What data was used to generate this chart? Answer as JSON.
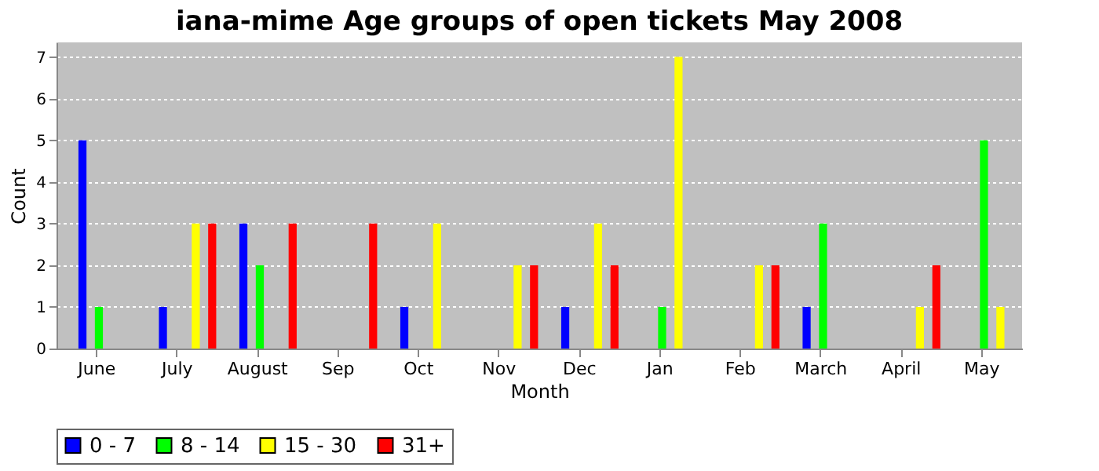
{
  "chart_data": {
    "type": "bar",
    "title": "iana-mime Age groups of open tickets May 2008",
    "xlabel": "Month",
    "ylabel": "Count",
    "categories": [
      "June",
      "July",
      "August",
      "Sep",
      "Oct",
      "Nov",
      "Dec",
      "Jan",
      "Feb",
      "March",
      "April",
      "May"
    ],
    "series": [
      {
        "name": "0 - 7",
        "color": "#0000ff",
        "values": [
          5,
          1,
          3,
          0,
          1,
          0,
          1,
          0,
          0,
          1,
          0,
          0
        ]
      },
      {
        "name": "8 - 14",
        "color": "#00ff00",
        "values": [
          1,
          0,
          2,
          0,
          0,
          0,
          0,
          1,
          0,
          3,
          0,
          5
        ]
      },
      {
        "name": "15 - 30",
        "color": "#ffff00",
        "values": [
          0,
          3,
          0,
          0,
          3,
          2,
          3,
          7,
          2,
          0,
          1,
          1
        ]
      },
      {
        "name": "31+",
        "color": "#ff0000",
        "values": [
          0,
          3,
          3,
          3,
          0,
          2,
          2,
          0,
          2,
          0,
          2,
          0
        ]
      }
    ],
    "ylim": [
      0,
      7.35
    ],
    "yticks": [
      0,
      1,
      2,
      3,
      4,
      5,
      6,
      7
    ],
    "grid": "y",
    "legend": "bottom"
  }
}
